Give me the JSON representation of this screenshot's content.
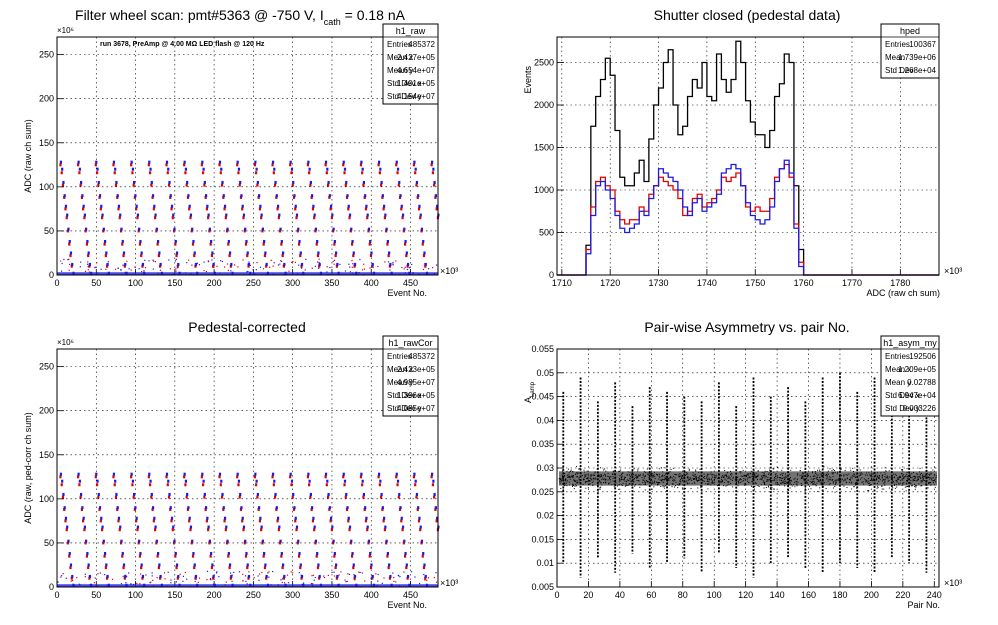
{
  "chart_data": [
    {
      "type": "scatter",
      "title_main": "Filter wheel scan: pmt#5363 @  -750 V, I",
      "title_sub": "cath",
      "title_tail": " = 0.18 nA",
      "xlabel": "Event No.",
      "ylabel": "ADC (raw ch sum)",
      "x_exponent": "×10³",
      "y_exponent": "×10⁶",
      "xlim": [
        0,
        485
      ],
      "ylim": [
        0,
        270
      ],
      "x_ticks": [
        "0",
        "50",
        "100",
        "150",
        "200",
        "250",
        "300",
        "350",
        "400",
        "450"
      ],
      "y_ticks": [
        "0",
        "50",
        "100",
        "150",
        "200",
        "250"
      ],
      "grid": true,
      "annotation": "run 3678, PreAmp @ 4.00 MΩ LED flash @  120 Hz",
      "stats": {
        "name": "h1_raw",
        "rows": [
          [
            "Entries",
            "485372"
          ],
          [
            "Mean x",
            "2.427e+05"
          ],
          [
            "Mean y",
            "4.654e+07"
          ],
          [
            "Std Dev x",
            "1.401e+05"
          ],
          [
            "Std Dev y",
            "4.154e+07"
          ]
        ]
      },
      "series": [
        {
          "color": "#e00000",
          "level_values": [
            125,
            116,
            102,
            88,
            75,
            65,
            50,
            35,
            22,
            10
          ]
        },
        {
          "color": "#1a1ae6",
          "level_values": [
            128,
            120,
            105,
            90,
            78,
            68,
            52,
            38,
            25,
            12,
            2
          ]
        }
      ],
      "cycle_period": 22.5
    },
    {
      "type": "line",
      "title": "Shutter closed (pedestal data)",
      "xlabel": "ADC (raw ch sum)",
      "ylabel": "Events",
      "x_exponent": "×10³",
      "xlim": [
        1709,
        1788
      ],
      "ylim": [
        0,
        2800
      ],
      "x_ticks": [
        "1710",
        "1720",
        "1730",
        "1740",
        "1750",
        "1760",
        "1770",
        "1780"
      ],
      "y_ticks": [
        "0",
        "500",
        "1000",
        "1500",
        "2000",
        "2500"
      ],
      "grid": true,
      "stats": {
        "name": "hped",
        "rows": [
          [
            "Entries",
            "100367"
          ],
          [
            "Mean",
            "1.739e+06"
          ],
          [
            "Std Dev",
            "1.268e+04"
          ]
        ]
      },
      "series": [
        {
          "color": "#000000",
          "x": [
            1714,
            1715,
            1716,
            1717,
            1718,
            1719,
            1720,
            1721,
            1722,
            1723,
            1724,
            1725,
            1726,
            1727,
            1728,
            1729,
            1730,
            1731,
            1732,
            1733,
            1734,
            1735,
            1736,
            1737,
            1738,
            1739,
            1740,
            1741,
            1742,
            1743,
            1744,
            1745,
            1746,
            1747,
            1748,
            1749,
            1750,
            1751,
            1752,
            1753,
            1754,
            1755,
            1756,
            1757,
            1758,
            1759,
            1760,
            1761,
            1762
          ],
          "values": [
            0,
            350,
            1750,
            2100,
            2300,
            2550,
            2350,
            1700,
            1150,
            1050,
            1050,
            1200,
            1350,
            1100,
            1600,
            2000,
            2200,
            2500,
            2650,
            2000,
            1650,
            1750,
            2100,
            2300,
            2200,
            2500,
            2100,
            2050,
            2600,
            2300,
            2150,
            2300,
            2750,
            2500,
            2050,
            1800,
            1650,
            1650,
            1500,
            1700,
            2100,
            2250,
            2600,
            2500,
            1050,
            300,
            0,
            0,
            0
          ]
        },
        {
          "color": "#e00000",
          "x": [
            1714,
            1715,
            1716,
            1717,
            1718,
            1719,
            1720,
            1721,
            1722,
            1723,
            1724,
            1725,
            1726,
            1727,
            1728,
            1729,
            1730,
            1731,
            1732,
            1733,
            1734,
            1735,
            1736,
            1737,
            1738,
            1739,
            1740,
            1741,
            1742,
            1743,
            1744,
            1745,
            1746,
            1747,
            1748,
            1749,
            1750,
            1751,
            1752,
            1753,
            1754,
            1755,
            1756,
            1757,
            1758,
            1759,
            1760,
            1761,
            1762
          ],
          "values": [
            0,
            300,
            800,
            1100,
            1150,
            1050,
            1000,
            750,
            650,
            600,
            650,
            650,
            800,
            750,
            950,
            1050,
            1150,
            1100,
            1050,
            1000,
            900,
            700,
            750,
            900,
            950,
            800,
            850,
            900,
            1000,
            1150,
            1100,
            1150,
            1200,
            1050,
            800,
            750,
            800,
            750,
            750,
            900,
            1150,
            1250,
            1300,
            1150,
            600,
            150,
            0,
            0,
            0
          ]
        },
        {
          "color": "#1a1ae6",
          "x": [
            1714,
            1715,
            1716,
            1717,
            1718,
            1719,
            1720,
            1721,
            1722,
            1723,
            1724,
            1725,
            1726,
            1727,
            1728,
            1729,
            1730,
            1731,
            1732,
            1733,
            1734,
            1735,
            1736,
            1737,
            1738,
            1739,
            1740,
            1741,
            1742,
            1743,
            1744,
            1745,
            1746,
            1747,
            1748,
            1749,
            1750,
            1751,
            1752,
            1753,
            1754,
            1755,
            1756,
            1757,
            1758,
            1759,
            1760,
            1761,
            1762
          ],
          "values": [
            0,
            250,
            700,
            1050,
            1100,
            1000,
            900,
            700,
            550,
            500,
            550,
            600,
            750,
            700,
            900,
            1050,
            1250,
            1200,
            1150,
            1100,
            1000,
            800,
            700,
            850,
            900,
            750,
            800,
            850,
            950,
            1200,
            1250,
            1300,
            1250,
            1050,
            850,
            700,
            650,
            600,
            650,
            800,
            1100,
            1250,
            1350,
            1200,
            550,
            100,
            0,
            0,
            0
          ]
        }
      ]
    },
    {
      "type": "scatter",
      "title": "Pedestal-corrected",
      "xlabel": "Event No.",
      "ylabel": "ADC (raw, ped-corr ch sum)",
      "x_exponent": "×10³",
      "y_exponent": "×10⁶",
      "xlim": [
        0,
        485
      ],
      "ylim": [
        0,
        270
      ],
      "x_ticks": [
        "0",
        "50",
        "100",
        "150",
        "200",
        "250",
        "300",
        "350",
        "400",
        "450"
      ],
      "y_ticks": [
        "0",
        "50",
        "100",
        "150",
        "200",
        "250"
      ],
      "grid": true,
      "stats": {
        "name": "h1_rawCor",
        "rows": [
          [
            "Entries",
            "485372"
          ],
          [
            "Mean x",
            "2.423e+05"
          ],
          [
            "Mean y",
            "4.985e+07"
          ],
          [
            "Std Dev x",
            "1.396e+05"
          ],
          [
            "Std Dev y",
            "4.085e+07"
          ]
        ]
      },
      "series": [
        {
          "color": "#e00000",
          "level_values": [
            125,
            116,
            102,
            88,
            75,
            65,
            50,
            35,
            22,
            10
          ]
        },
        {
          "color": "#1a1ae6",
          "level_values": [
            128,
            120,
            105,
            90,
            78,
            68,
            52,
            38,
            25,
            12,
            2
          ]
        }
      ],
      "cycle_period": 22.5
    },
    {
      "type": "scatter",
      "title": "Pair-wise Asymmetry vs. pair No.",
      "xlabel": "Pair No.",
      "ylabel_main": "A",
      "ylabel_sub": "Lamp",
      "x_exponent": "×10³",
      "xlim": [
        0,
        243
      ],
      "ylim": [
        0.005,
        0.055
      ],
      "x_ticks": [
        "0",
        "20",
        "40",
        "60",
        "80",
        "100",
        "120",
        "140",
        "160",
        "180",
        "200",
        "220",
        "240"
      ],
      "y_ticks": [
        "0.005",
        "0.01",
        "0.015",
        "0.02",
        "0.025",
        "0.03",
        "0.035",
        "0.04",
        "0.045",
        "0.05",
        "0.055"
      ],
      "grid": true,
      "stats": {
        "name": "h1_asym_my",
        "rows": [
          [
            "Entries",
            "192506"
          ],
          [
            "Mean x",
            "1.209e+05"
          ],
          [
            "Mean y",
            "0.02788"
          ],
          [
            "Std Dev x",
            "6.947e+04"
          ],
          [
            "Std Dev y",
            "0.003226"
          ]
        ]
      },
      "series": [
        {
          "color": "#000000",
          "band_center": 0.0278,
          "band_halfwidth": 0.0015,
          "spike_x": [
            4,
            15,
            26,
            37,
            48,
            59,
            70,
            81,
            92,
            103,
            114,
            125,
            136,
            147,
            158,
            169,
            180,
            191,
            202,
            213,
            224,
            235
          ],
          "spike_top": [
            0.046,
            0.049,
            0.044,
            0.048,
            0.043,
            0.047,
            0.046,
            0.045,
            0.044,
            0.048,
            0.043,
            0.049,
            0.045,
            0.047,
            0.044,
            0.049,
            0.05,
            0.046,
            0.049,
            0.047,
            0.044,
            0.048
          ],
          "spike_bottom": [
            0.01,
            0.007,
            0.011,
            0.008,
            0.012,
            0.009,
            0.01,
            0.011,
            0.008,
            0.012,
            0.009,
            0.007,
            0.01,
            0.011,
            0.009,
            0.008,
            0.01,
            0.009,
            0.008,
            0.011,
            0.01,
            0.008
          ]
        }
      ]
    }
  ]
}
